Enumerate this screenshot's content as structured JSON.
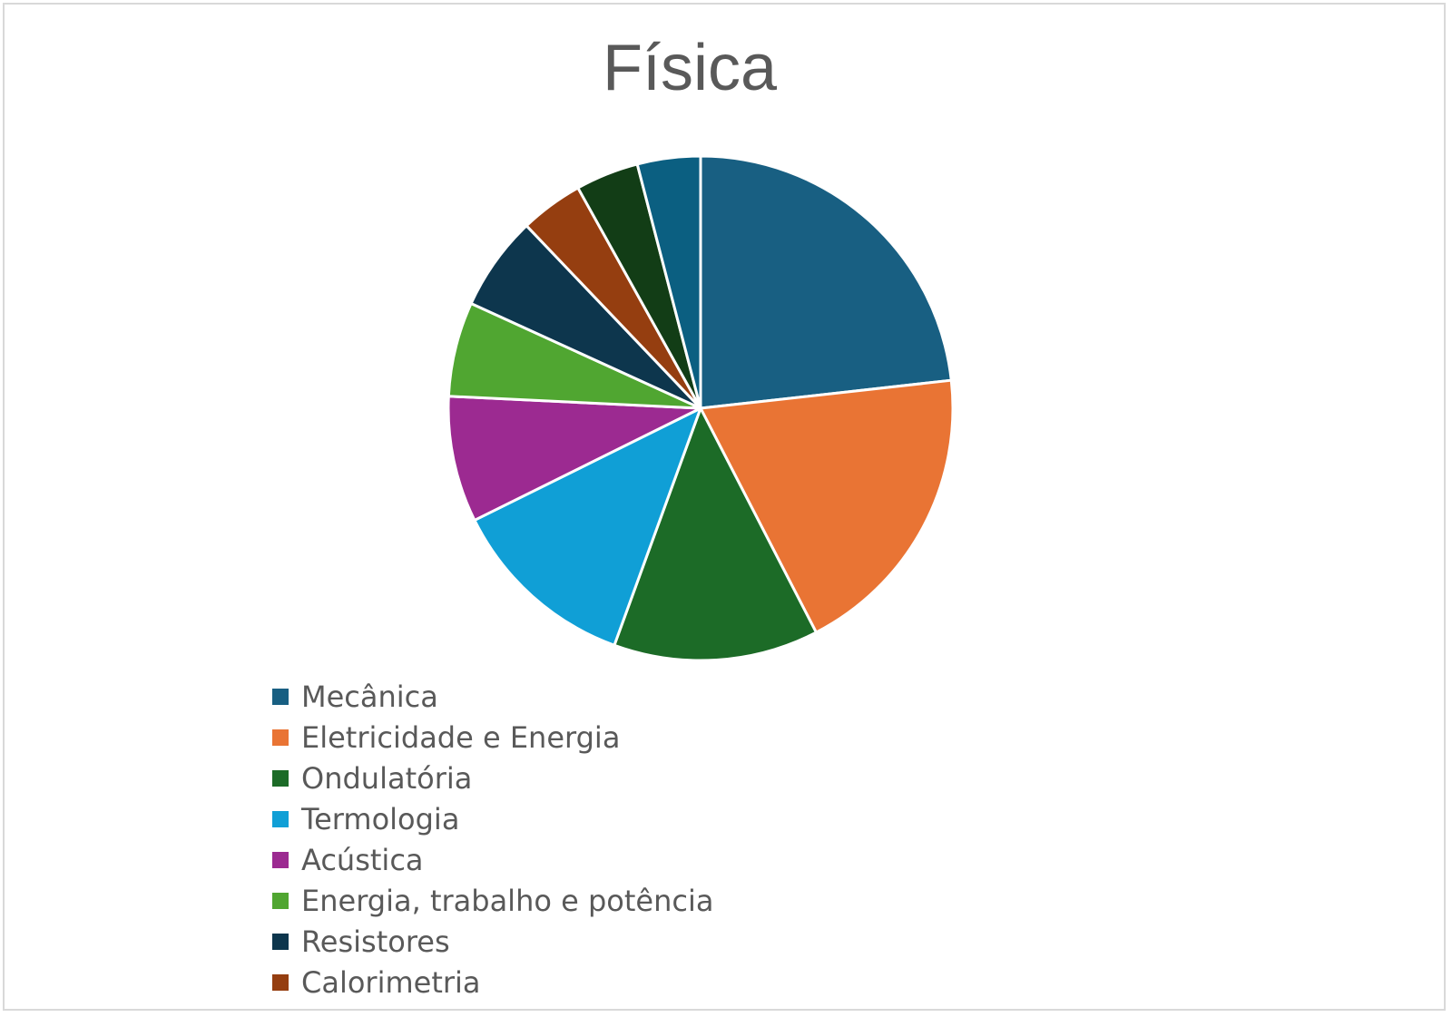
{
  "chart_data": {
    "type": "pie",
    "title": "Física",
    "categories": [
      "Mecânica",
      "Eletricidade e Energia",
      "Ondulatória",
      "Termologia",
      "Acústica",
      "Energia, trabalho e potência",
      "Resistores",
      "Calorimetria",
      "",
      ""
    ],
    "values": [
      23,
      19,
      13,
      12,
      8,
      6,
      6,
      4,
      4,
      4
    ],
    "colors": [
      "#185f82",
      "#e97434",
      "#1c6b27",
      "#109fd6",
      "#9c2a91",
      "#50a631",
      "#0d364d",
      "#953e10",
      "#123d16",
      "#0b5f81"
    ],
    "legend": "bottom",
    "legend_entries": [
      "Mecânica",
      "Eletricidade e Energia",
      "Ondulatória",
      "Termologia",
      "Acústica",
      "Energia, trabalho e potência",
      "Resistores",
      "Calorimetria"
    ]
  }
}
